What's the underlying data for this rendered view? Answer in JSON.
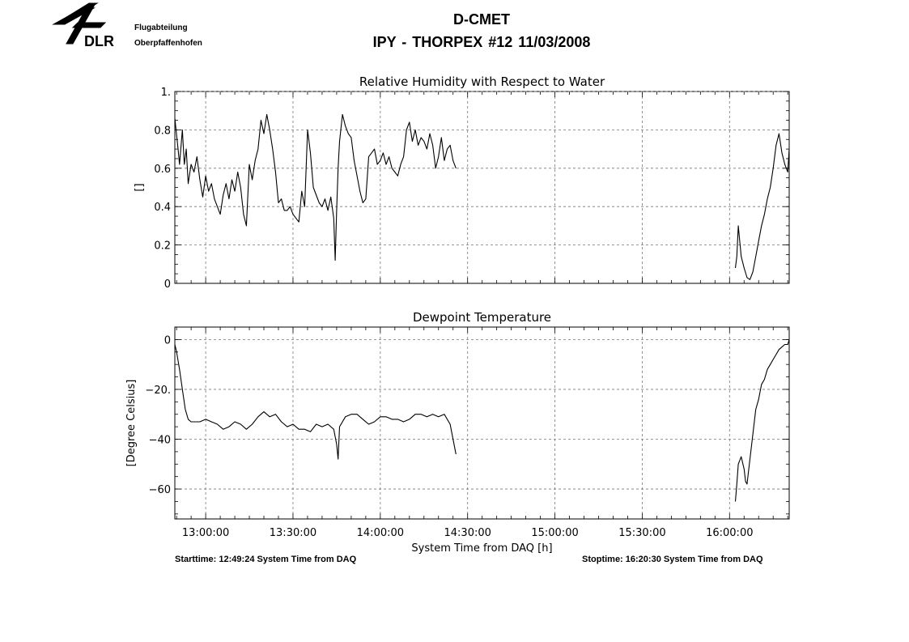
{
  "header": {
    "org": "DLR",
    "dept_line1": "Flugabteilung",
    "dept_line2": "Oberpfaffenhofen",
    "title": "D-CMET",
    "subtitle": "IPY - THORPEX #12   11/03/2008"
  },
  "footer": {
    "starttime": "Starttime: 12:49:24 System Time from DAQ",
    "stoptime": "Stoptime: 16:20:30 System Time from DAQ"
  },
  "chart_data": [
    {
      "type": "line",
      "title": "Relative Humidity with Respect to Water",
      "ylabel": "[]",
      "xlabel": "",
      "xlim": [
        "12:49:24",
        "16:20:30"
      ],
      "ylim": [
        0,
        1.0
      ],
      "yticks": [
        0,
        0.2,
        0.4,
        0.6,
        0.8,
        1.0
      ],
      "ytick_labels": [
        "0",
        "0.2",
        "0.4",
        "0.6",
        "0.8",
        "1."
      ],
      "grid": true,
      "series": [
        {
          "x": [
            "12:49:24",
            "12:50:30",
            "12:51:00",
            "12:52:00",
            "12:52:40",
            "12:53:20",
            "12:54:00",
            "12:55:00",
            "12:56:00",
            "12:57:00",
            "12:58:00",
            "12:59:00",
            "13:00:00",
            "13:01:00",
            "13:02:00",
            "13:03:00",
            "13:04:00",
            "13:05:00",
            "13:06:00",
            "13:07:00",
            "13:08:00",
            "13:09:00",
            "13:10:00",
            "13:11:00",
            "13:12:00",
            "13:13:00",
            "13:14:00",
            "13:15:00",
            "13:16:00",
            "13:17:00",
            "13:18:00",
            "13:19:00",
            "13:20:00",
            "13:21:00",
            "13:22:00",
            "13:23:00",
            "13:24:00",
            "13:25:00",
            "13:26:00",
            "13:27:00",
            "13:28:00",
            "13:29:00",
            "13:30:00",
            "13:31:00",
            "13:32:00",
            "13:33:00",
            "13:34:00",
            "13:35:00",
            "13:36:00",
            "13:37:00",
            "13:38:00",
            "13:39:00",
            "13:40:00",
            "13:41:00",
            "13:42:00",
            "13:43:00",
            "13:44:00",
            "13:44:30",
            "13:45:00",
            "13:45:30",
            "13:46:00",
            "13:47:00",
            "13:48:00",
            "13:49:00",
            "13:50:00",
            "13:51:00",
            "13:52:00",
            "13:53:00",
            "13:54:00",
            "13:55:00",
            "13:56:00",
            "13:57:00",
            "13:58:00",
            "13:59:00",
            "14:00:00",
            "14:01:00",
            "14:02:00",
            "14:03:00",
            "14:04:00",
            "14:05:00",
            "14:06:00",
            "14:07:00",
            "14:08:00",
            "14:09:00",
            "14:10:00",
            "14:11:00",
            "14:12:00",
            "14:13:00",
            "14:14:00",
            "14:15:00",
            "14:16:00",
            "14:17:00",
            "14:18:00",
            "14:19:00",
            "14:20:00",
            "14:21:00",
            "14:22:00",
            "14:23:00",
            "14:24:00",
            "14:25:00",
            "14:26:00"
          ],
          "y": [
            0.86,
            0.7,
            0.62,
            0.8,
            0.62,
            0.7,
            0.52,
            0.62,
            0.58,
            0.66,
            0.54,
            0.45,
            0.56,
            0.48,
            0.52,
            0.44,
            0.4,
            0.36,
            0.46,
            0.52,
            0.44,
            0.54,
            0.48,
            0.58,
            0.5,
            0.36,
            0.3,
            0.62,
            0.54,
            0.64,
            0.7,
            0.85,
            0.78,
            0.88,
            0.8,
            0.7,
            0.58,
            0.42,
            0.44,
            0.38,
            0.38,
            0.4,
            0.36,
            0.34,
            0.32,
            0.48,
            0.4,
            0.8,
            0.68,
            0.5,
            0.46,
            0.42,
            0.4,
            0.44,
            0.38,
            0.45,
            0.34,
            0.12,
            0.38,
            0.6,
            0.74,
            0.88,
            0.82,
            0.78,
            0.76,
            0.64,
            0.56,
            0.48,
            0.42,
            0.44,
            0.66,
            0.68,
            0.7,
            0.62,
            0.64,
            0.68,
            0.62,
            0.66,
            0.6,
            0.58,
            0.56,
            0.62,
            0.66,
            0.8,
            0.84,
            0.74,
            0.8,
            0.72,
            0.76,
            0.74,
            0.7,
            0.78,
            0.72,
            0.6,
            0.66,
            0.76,
            0.64,
            0.7,
            0.72,
            0.64,
            0.6
          ]
        },
        {
          "x": [
            "16:02:00",
            "16:02:30",
            "16:03:00",
            "16:03:30",
            "16:04:00",
            "16:05:00",
            "16:06:00",
            "16:07:00",
            "16:08:00",
            "16:09:00",
            "16:10:00",
            "16:11:00",
            "16:12:00",
            "16:13:00",
            "16:14:00",
            "16:15:00",
            "16:16:00",
            "16:17:00",
            "16:18:00",
            "16:19:00",
            "16:20:00",
            "16:20:30"
          ],
          "y": [
            0.08,
            0.14,
            0.3,
            0.22,
            0.14,
            0.08,
            0.03,
            0.02,
            0.06,
            0.14,
            0.22,
            0.3,
            0.36,
            0.44,
            0.5,
            0.6,
            0.72,
            0.78,
            0.68,
            0.62,
            0.58,
            0.7
          ]
        }
      ]
    },
    {
      "type": "line",
      "title": "Dewpoint Temperature",
      "ylabel": "[Degree Celsius]",
      "xlabel": "System Time from DAQ [h]",
      "xlim": [
        "12:49:24",
        "16:20:30"
      ],
      "ylim": [
        -72,
        5
      ],
      "yticks": [
        0,
        -20,
        -40,
        -60
      ],
      "ytick_labels": [
        "0",
        "-20.",
        "-40",
        "-60"
      ],
      "xtick_labels": [
        "13:00:00",
        "13:30:00",
        "14:00:00",
        "14:30:00",
        "15:00:00",
        "15:30:00",
        "16:00:00"
      ],
      "grid": true,
      "series": [
        {
          "x": [
            "12:49:24",
            "12:50:00",
            "12:51:00",
            "12:52:00",
            "12:53:00",
            "12:54:00",
            "12:55:00",
            "12:56:00",
            "12:58:00",
            "13:00:00",
            "13:02:00",
            "13:04:00",
            "13:06:00",
            "13:08:00",
            "13:10:00",
            "13:12:00",
            "13:14:00",
            "13:16:00",
            "13:18:00",
            "13:20:00",
            "13:22:00",
            "13:24:00",
            "13:26:00",
            "13:28:00",
            "13:30:00",
            "13:32:00",
            "13:34:00",
            "13:36:00",
            "13:38:00",
            "13:40:00",
            "13:42:00",
            "13:44:00",
            "13:45:00",
            "13:45:30",
            "13:46:00",
            "13:48:00",
            "13:50:00",
            "13:52:00",
            "13:54:00",
            "13:56:00",
            "13:58:00",
            "14:00:00",
            "14:02:00",
            "14:04:00",
            "14:06:00",
            "14:08:00",
            "14:10:00",
            "14:12:00",
            "14:14:00",
            "14:16:00",
            "14:18:00",
            "14:20:00",
            "14:22:00",
            "14:24:00",
            "14:25:00",
            "14:26:00"
          ],
          "y": [
            -2,
            -5,
            -12,
            -20,
            -28,
            -32,
            -33,
            -33,
            -33,
            -32,
            -33,
            -34,
            -36,
            -35,
            -33,
            -34,
            -36,
            -34,
            -31,
            -29,
            -31,
            -30,
            -33,
            -35,
            -34,
            -36,
            -36,
            -37,
            -34,
            -35,
            -34,
            -36,
            -42,
            -48,
            -35,
            -31,
            -30,
            -30,
            -32,
            -34,
            -33,
            -31,
            -31,
            -32,
            -32,
            -33,
            -32,
            -30,
            -30,
            -31,
            -30,
            -31,
            -30,
            -34,
            -40,
            -46
          ]
        },
        {
          "x": [
            "16:02:00",
            "16:02:30",
            "16:03:00",
            "16:04:00",
            "16:05:00",
            "16:05:30",
            "16:06:00",
            "16:07:00",
            "16:08:00",
            "16:09:00",
            "16:10:00",
            "16:11:00",
            "16:12:00",
            "16:13:00",
            "16:14:00",
            "16:15:00",
            "16:16:00",
            "16:17:00",
            "16:18:00",
            "16:19:00",
            "16:20:00",
            "16:20:30"
          ],
          "y": [
            -65,
            -58,
            -50,
            -47,
            -52,
            -57,
            -58,
            -48,
            -38,
            -28,
            -24,
            -18,
            -16,
            -12,
            -10,
            -8,
            -6,
            -4,
            -3,
            -2,
            -2,
            0
          ]
        }
      ]
    }
  ]
}
